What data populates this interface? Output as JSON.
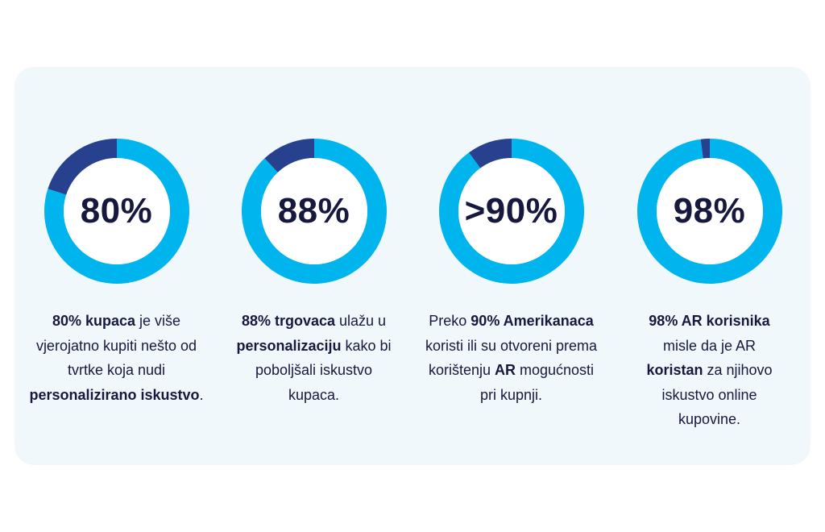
{
  "colors": {
    "ring_main": "#00b4ee",
    "ring_accent": "#27418f",
    "panel": "#f1f8fc",
    "text": "#16193d"
  },
  "chart_data": [
    {
      "type": "pie",
      "label": "80%",
      "value": 80,
      "desc": [
        {
          "t": "80% kupaca",
          "b": true
        },
        {
          "t": " je više vjerojatno kupiti nešto od tvrtke koja nudi ",
          "b": false
        },
        {
          "t": "personalizirano iskustvo",
          "b": true
        },
        {
          "t": ".",
          "b": false
        }
      ]
    },
    {
      "type": "pie",
      "label": "88%",
      "value": 88,
      "desc": [
        {
          "t": "88% trgovaca",
          "b": true
        },
        {
          "t": " ulažu u ",
          "b": false
        },
        {
          "t": "personalizaciju",
          "b": true
        },
        {
          "t": " kako bi poboljšali iskustvo kupaca.",
          "b": false
        }
      ]
    },
    {
      "type": "pie",
      "label": ">90%",
      "value": 90,
      "desc": [
        {
          "t": "Preko ",
          "b": false
        },
        {
          "t": "90% Amerikanaca",
          "b": true
        },
        {
          "t": " koristi ili su otvoreni prema korištenju ",
          "b": false
        },
        {
          "t": "AR",
          "b": true
        },
        {
          "t": " mogućnosti pri kupnji.",
          "b": false
        }
      ]
    },
    {
      "type": "pie",
      "label": "98%",
      "value": 98,
      "desc": [
        {
          "t": "98% AR korisnika",
          "b": true
        },
        {
          "t": " misle da je AR ",
          "b": false
        },
        {
          "t": "koristan",
          "b": true
        },
        {
          "t": " za njihovo iskustvo online kupovine.",
          "b": false
        }
      ]
    }
  ]
}
